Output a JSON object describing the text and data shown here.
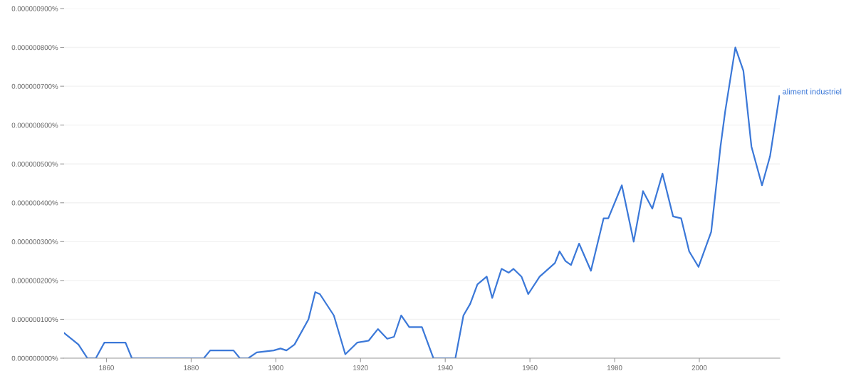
{
  "chart_data": {
    "type": "line",
    "x": [
      1850,
      1853.4,
      1855.5,
      1857.5,
      1859.5,
      1864.5,
      1866,
      1883,
      1884.5,
      1890,
      1891.5,
      1893.5,
      1895.5,
      1899.5,
      1901.1,
      1902.5,
      1904.4,
      1907.7,
      1909.3,
      1910.4,
      1913.7,
      1916.4,
      1919.2,
      1921.9,
      1924.1,
      1926.3,
      1927.9,
      1929.6,
      1931.5,
      1934.5,
      1937.2,
      1942.4,
      1944.3,
      1945.9,
      1947.6,
      1949.8,
      1951.1,
      1953.3,
      1955,
      1956.1,
      1958,
      1959.6,
      1962.3,
      1965.9,
      1967,
      1968.4,
      1969.7,
      1971.6,
      1974.4,
      1977.4,
      1978.5,
      1981.7,
      1984.5,
      1986.7,
      1988.9,
      1991.3,
      1993.8,
      1995.7,
      1997.6,
      1999.8,
      2002.8,
      2005,
      2006.1,
      2008.5,
      2010.4,
      2012.3,
      2014.8,
      2016.7,
      2018.9
    ],
    "series": [
      {
        "name": "aliment industriel",
        "color": "#3b78d8",
        "values": [
          6.5e-08,
          3.5e-08,
          0.0,
          0.0,
          4e-08,
          4e-08,
          0.0,
          0.0,
          2e-08,
          2e-08,
          0.0,
          0.0,
          1.5e-08,
          2e-08,
          2.5e-08,
          2e-08,
          3.5e-08,
          1e-07,
          1.7e-07,
          1.65e-07,
          1.1e-07,
          1e-08,
          4e-08,
          4.5e-08,
          7.5e-08,
          5e-08,
          5.5e-08,
          1.1e-07,
          8e-08,
          8e-08,
          0.0,
          0.0,
          1.1e-07,
          1.4e-07,
          1.9e-07,
          2.1e-07,
          1.55e-07,
          2.3e-07,
          2.2e-07,
          2.3e-07,
          2.1e-07,
          1.65e-07,
          2.1e-07,
          2.45e-07,
          2.75e-07,
          2.5e-07,
          2.4e-07,
          2.95e-07,
          2.25e-07,
          3.6e-07,
          3.6e-07,
          4.45e-07,
          3e-07,
          4.3e-07,
          3.85e-07,
          4.75e-07,
          3.65e-07,
          3.6e-07,
          2.75e-07,
          2.35e-07,
          3.25e-07,
          5.45e-07,
          6.35e-07,
          8e-07,
          7.4e-07,
          5.45e-07,
          4.45e-07,
          5.2e-07,
          6.75e-07
        ]
      }
    ],
    "xlim": [
      1850,
      2019
    ],
    "xticks": [
      1860,
      1880,
      1900,
      1920,
      1940,
      1960,
      1980,
      2000
    ],
    "ylim": [
      0,
      9e-07
    ],
    "yticks": [
      {
        "value": 0,
        "label": "0.000000000%"
      },
      {
        "value": 1e-07,
        "label": "0.000000100%"
      },
      {
        "value": 2e-07,
        "label": "0.000000200%"
      },
      {
        "value": 3e-07,
        "label": "0.000000300%"
      },
      {
        "value": 4e-07,
        "label": "0.000000400%"
      },
      {
        "value": 5e-07,
        "label": "0.000000500%"
      },
      {
        "value": 6e-07,
        "label": "0.000000600%"
      },
      {
        "value": 7e-07,
        "label": "0.000000700%"
      },
      {
        "value": 8e-07,
        "label": "0.000000800%"
      },
      {
        "value": 9e-07,
        "label": "0.000000900%"
      }
    ],
    "grid": "y",
    "marker": "none",
    "line_style": "solid"
  }
}
